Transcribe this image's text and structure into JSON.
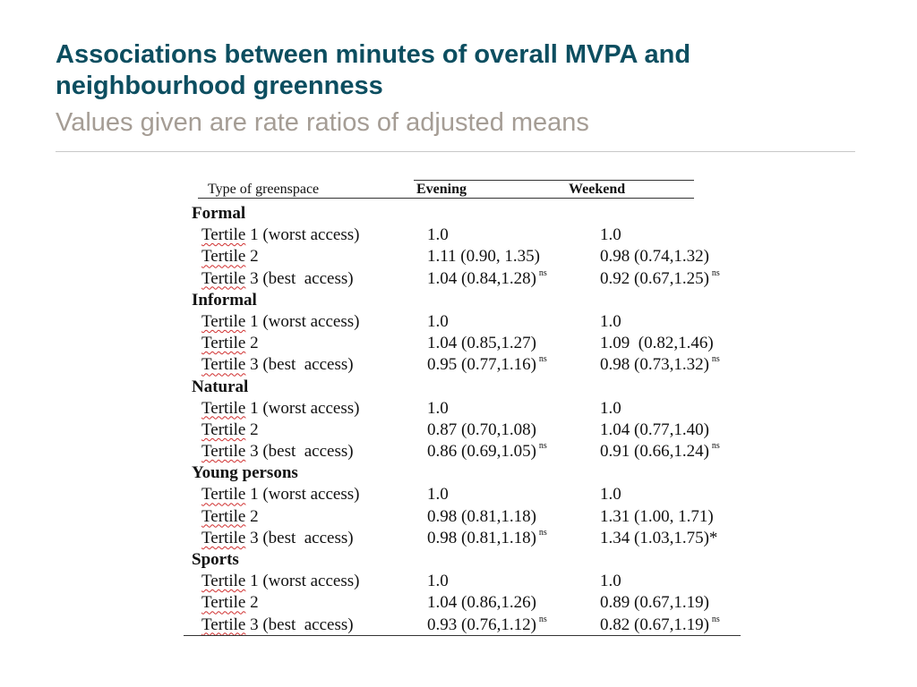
{
  "slide": {
    "title_line1": "Associations between minutes of overall MVPA and",
    "title_line2": "neighbourhood greenness",
    "subtitle": "Values given are rate ratios of adjusted means"
  },
  "table": {
    "headers": {
      "type": "Type of greenspace",
      "evening": "Evening",
      "weekend": "Weekend"
    },
    "sections": [
      {
        "label": "Formal",
        "rows": [
          {
            "tertile": "Tertile",
            "desc": " 1 (worst access)",
            "evening": "1.0",
            "evening_mark": "",
            "weekend": "1.0",
            "weekend_mark": ""
          },
          {
            "tertile": "Tertile",
            "desc": " 2",
            "evening": "1.11 (0.90, 1.35)",
            "evening_mark": "",
            "weekend": "0.98 (0.74,1.32)",
            "weekend_mark": ""
          },
          {
            "tertile": "Tertile",
            "desc": " 3 (best  access)",
            "evening": "1.04 (0.84,1.28)",
            "evening_mark": "ns",
            "weekend": "0.92 (0.67,1.25)",
            "weekend_mark": "ns"
          }
        ]
      },
      {
        "label": "Informal",
        "rows": [
          {
            "tertile": "Tertile",
            "desc": " 1 (worst access)",
            "evening": "1.0",
            "evening_mark": "",
            "weekend": "1.0",
            "weekend_mark": ""
          },
          {
            "tertile": "Tertile",
            "desc": " 2",
            "evening": "1.04 (0.85,1.27)",
            "evening_mark": "",
            "weekend": "1.09  (0.82,1.46)",
            "weekend_mark": ""
          },
          {
            "tertile": "Tertile",
            "desc": " 3 (best  access)",
            "evening": "0.95 (0.77,1.16)",
            "evening_mark": "ns",
            "weekend": "0.98 (0.73,1.32)",
            "weekend_mark": "ns"
          }
        ]
      },
      {
        "label": "Natural",
        "rows": [
          {
            "tertile": "Tertile",
            "desc": " 1 (worst access)",
            "evening": "1.0",
            "evening_mark": "",
            "weekend": "1.0",
            "weekend_mark": ""
          },
          {
            "tertile": "Tertile",
            "desc": " 2",
            "evening": "0.87 (0.70,1.08)",
            "evening_mark": "",
            "weekend": "1.04 (0.77,1.40)",
            "weekend_mark": ""
          },
          {
            "tertile": "Tertile",
            "desc": " 3 (best  access)",
            "evening": "0.86 (0.69,1.05)",
            "evening_mark": "ns",
            "weekend": "0.91 (0.66,1.24)",
            "weekend_mark": "ns"
          }
        ]
      },
      {
        "label": "Young  persons",
        "rows": [
          {
            "tertile": "Tertile",
            "desc": " 1 (worst access)",
            "evening": "1.0",
            "evening_mark": "",
            "weekend": "1.0",
            "weekend_mark": ""
          },
          {
            "tertile": "Tertile",
            "desc": " 2",
            "evening": "0.98 (0.81,1.18)",
            "evening_mark": "",
            "weekend": "1.31 (1.00, 1.71)",
            "weekend_mark": ""
          },
          {
            "tertile": "Tertile",
            "desc": " 3 (best  access)",
            "evening": "0.98 (0.81,1.18)",
            "evening_mark": "ns",
            "weekend": "1.34 (1.03,1.75)*",
            "weekend_mark": ""
          }
        ]
      },
      {
        "label": "Sports",
        "rows": [
          {
            "tertile": "Tertile",
            "desc": " 1 (worst access)",
            "evening": "1.0",
            "evening_mark": "",
            "weekend": "1.0",
            "weekend_mark": ""
          },
          {
            "tertile": "Tertile",
            "desc": " 2",
            "evening": "1.04 (0.86,1.26)",
            "evening_mark": "",
            "weekend": "0.89 (0.67,1.19)",
            "weekend_mark": ""
          },
          {
            "tertile": "Tertile",
            "desc": " 3 (best  access)",
            "evening": "0.93 (0.76,1.12)",
            "evening_mark": "ns",
            "weekend": "0.82 (0.67,1.19)",
            "weekend_mark": "ns"
          }
        ]
      }
    ]
  }
}
